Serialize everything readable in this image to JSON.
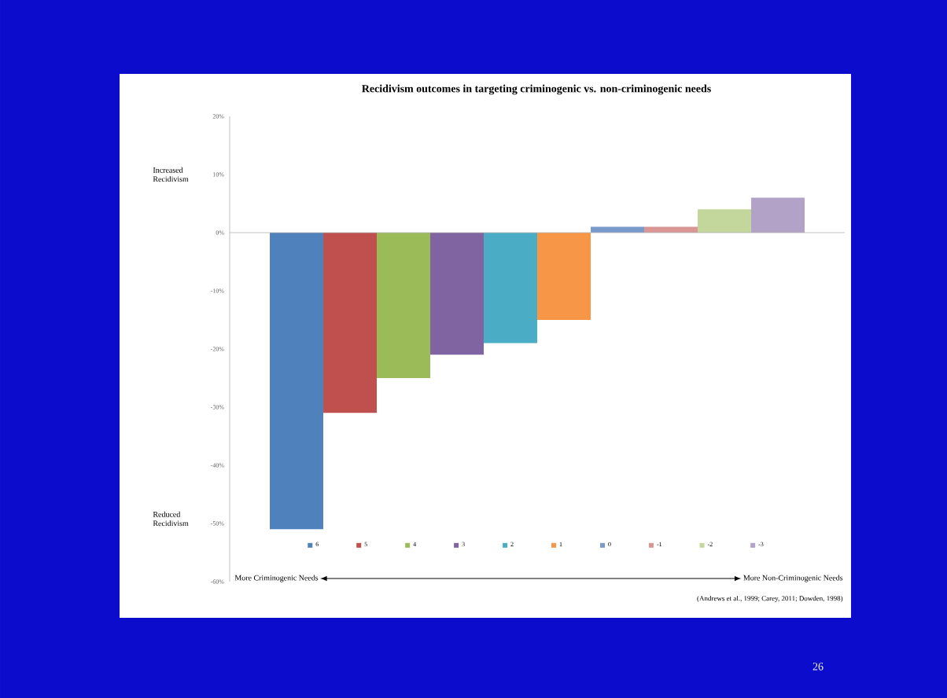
{
  "chart_data": {
    "type": "bar",
    "title": "Recidivism outcomes in targeting criminogenic vs. non-criminogenic needs",
    "categories": [
      null
    ],
    "series": [
      {
        "name": "6",
        "color": "#4f81bd",
        "values": [
          -51
        ]
      },
      {
        "name": "5",
        "color": "#c0504d",
        "values": [
          -31
        ]
      },
      {
        "name": "4",
        "color": "#9bbb59",
        "values": [
          -25
        ]
      },
      {
        "name": "3",
        "color": "#8064a2",
        "values": [
          -21
        ]
      },
      {
        "name": "2",
        "color": "#4bacc6",
        "values": [
          -19
        ]
      },
      {
        "name": "1",
        "color": "#f79646",
        "values": [
          -15
        ]
      },
      {
        "name": "0",
        "color": "#7a9acb",
        "values": [
          1
        ]
      },
      {
        "name": "-1",
        "color": "#d99694",
        "values": [
          1
        ]
      },
      {
        "name": "-2",
        "color": "#c3d69b",
        "values": [
          4
        ]
      },
      {
        "name": "-3",
        "color": "#b3a2c7",
        "values": [
          6
        ]
      }
    ],
    "ylim": [
      -60,
      20
    ],
    "yticks": [
      {
        "value": 20,
        "label": "20%"
      },
      {
        "value": 10,
        "label": "10%"
      },
      {
        "value": 0,
        "label": "0%"
      },
      {
        "value": -10,
        "label": "-10%"
      },
      {
        "value": -20,
        "label": "-20%"
      },
      {
        "value": -30,
        "label": "-30%"
      },
      {
        "value": -40,
        "label": "-40%"
      },
      {
        "value": -50,
        "label": "-50%"
      },
      {
        "value": -60,
        "label": "-60%"
      }
    ],
    "legend": "bottom",
    "annotations": [
      "Increased Recidivism",
      "Reduced Recidivism",
      "More Criminogenic Needs",
      "More Non-Criminogenic Needs",
      "(Andrews et al., 1999; Carey, 2011; Dowden, 1998)",
      "26"
    ]
  }
}
